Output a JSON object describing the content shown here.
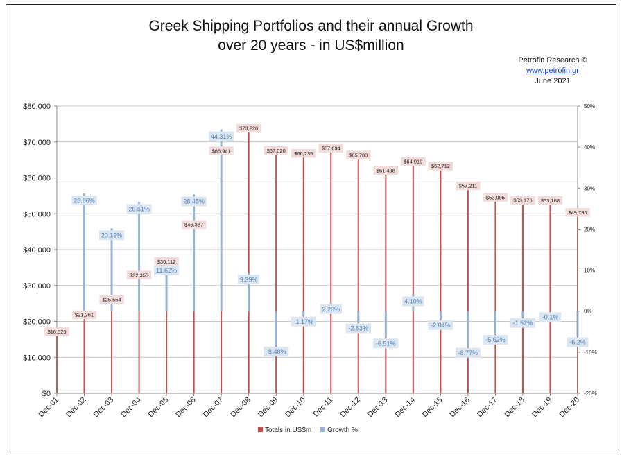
{
  "chart_data": {
    "type": "bar",
    "title": "Greek Shipping Portfolios and their annual Growth",
    "subtitle": "over 20 years - in US$million",
    "source": {
      "name": "Petrofin  Research ©",
      "url": "www.petrofin.gr",
      "date": "June 2021"
    },
    "categories": [
      "Dec-01",
      "Dec-02",
      "Dec-03",
      "Dec-04",
      "Dec-05",
      "Dec-06",
      "Dec-07",
      "Dec-08",
      "Dec-09",
      "Dec-10",
      "Dec-11",
      "Dec-12",
      "Dec-13",
      "Dec-14",
      "Dec-15",
      "Dec-16",
      "Dec-17",
      "Dec-18",
      "Dec-19",
      "Dec-20"
    ],
    "series": [
      {
        "name": "Totals in US$m",
        "axis": "left",
        "color": "#c0504d",
        "values": [
          16525,
          21261,
          25554,
          32353,
          36112,
          46387,
          66941,
          73228,
          67020,
          66235,
          67694,
          65780,
          61498,
          64019,
          62712,
          57211,
          53995,
          53176,
          53108,
          49795
        ],
        "labels": [
          "$16,525",
          "$21,261",
          "$25,554",
          "$32,353",
          "$36,112",
          "$46,387",
          "$66,941",
          "$73,228",
          "$67,020",
          "$66,235",
          "$67,694",
          "$65,780",
          "$61,498",
          "$64,019",
          "$62,712",
          "$57,211",
          "$53,995",
          "$53,176",
          "$53,108",
          "$49,795"
        ]
      },
      {
        "name": "Growth %",
        "axis": "right",
        "color": "#95b3d7",
        "values": [
          null,
          28.66,
          20.19,
          26.61,
          11.62,
          28.45,
          44.31,
          9.39,
          -8.48,
          -1.17,
          2.2,
          -2.83,
          -6.51,
          4.1,
          -2.04,
          -8.77,
          -5.62,
          -1.52,
          -0.1,
          -6.2
        ],
        "labels": [
          "",
          "28.66%",
          "20.19%",
          "26.61%",
          "11.62%",
          "28.45%",
          "44.31%",
          "9.39%",
          "-8.48%",
          "-1.17%",
          "2.20%",
          "-2.83%",
          "-6.51%",
          "4.10%",
          "-2.04%",
          "-8.77%",
          "-5.62%",
          "-1.52%",
          "-0.1%",
          "-6.2%"
        ]
      }
    ],
    "y_left": {
      "min": 0,
      "max": 80000,
      "ticks": [
        "$0",
        "$10,000",
        "$20,000",
        "$30,000",
        "$40,000",
        "$50,000",
        "$60,000",
        "$70,000",
        "$80,000"
      ]
    },
    "y_right": {
      "min": -20,
      "max": 50,
      "ticks": [
        "-20%",
        "-10%",
        "0%",
        "10%",
        "20%",
        "30%",
        "40%",
        "50%"
      ]
    },
    "grid": true,
    "legend_position": "bottom"
  }
}
